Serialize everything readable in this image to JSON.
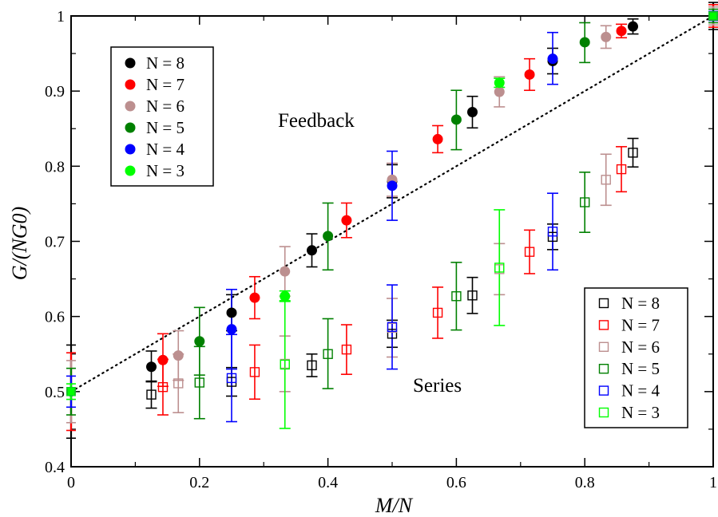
{
  "chart_data": {
    "type": "scatter",
    "xlabel": "M/N",
    "ylabel": "G/(NG0)",
    "xlim": [
      0,
      1
    ],
    "ylim": [
      0.4,
      1.0
    ],
    "x_ticks": [
      "0",
      "0.2",
      "0.4",
      "0.6",
      "0.8",
      "1"
    ],
    "y_ticks": [
      "0.4",
      "0.5",
      "0.6",
      "0.7",
      "0.8",
      "0.9",
      "1"
    ],
    "grid": false,
    "reference_line": {
      "style": "dotted",
      "x": [
        0,
        1
      ],
      "y": [
        0.5,
        1.0
      ]
    },
    "annotations": [
      "Feedback",
      "Series"
    ],
    "legends": [
      {
        "placement": "upper-left",
        "marker": "filled-circle",
        "entries": [
          "N = 8",
          "N = 7",
          "N = 6",
          "N = 5",
          "N = 4",
          "N = 3"
        ]
      },
      {
        "placement": "lower-right",
        "marker": "open-square",
        "entries": [
          "N = 8",
          "N = 7",
          "N = 6",
          "N = 5",
          "N = 4",
          "N = 3"
        ]
      }
    ],
    "groups": [
      {
        "label": "Feedback",
        "marker": "filled-circle",
        "series": [
          {
            "name": "N = 8",
            "color": "#000000",
            "points": [
              {
                "x": 0.125,
                "y": 0.533,
                "lo": 0.513,
                "hi": 0.554
              },
              {
                "x": 0.25,
                "y": 0.605,
                "lo": 0.581,
                "hi": 0.629
              },
              {
                "x": 0.375,
                "y": 0.688,
                "lo": 0.666,
                "hi": 0.71
              },
              {
                "x": 0.5,
                "y": 0.78,
                "lo": 0.758,
                "hi": 0.802
              },
              {
                "x": 0.625,
                "y": 0.872,
                "lo": 0.851,
                "hi": 0.893
              },
              {
                "x": 0.75,
                "y": 0.94,
                "lo": 0.923,
                "hi": 0.957
              },
              {
                "x": 0.875,
                "y": 0.986,
                "lo": 0.976,
                "hi": 0.996
              }
            ]
          },
          {
            "name": "N = 7",
            "color": "#ff0000",
            "points": [
              {
                "x": 0.143,
                "y": 0.542,
                "lo": 0.507,
                "hi": 0.577
              },
              {
                "x": 0.286,
                "y": 0.625,
                "lo": 0.597,
                "hi": 0.653
              },
              {
                "x": 0.429,
                "y": 0.728,
                "lo": 0.705,
                "hi": 0.751
              },
              {
                "x": 0.571,
                "y": 0.836,
                "lo": 0.818,
                "hi": 0.854
              },
              {
                "x": 0.714,
                "y": 0.922,
                "lo": 0.901,
                "hi": 0.943
              },
              {
                "x": 0.857,
                "y": 0.98,
                "lo": 0.971,
                "hi": 0.989
              }
            ]
          },
          {
            "name": "N = 6",
            "color": "#bc8f8f",
            "points": [
              {
                "x": 0.167,
                "y": 0.548,
                "lo": 0.515,
                "hi": 0.581
              },
              {
                "x": 0.333,
                "y": 0.66,
                "lo": 0.627,
                "hi": 0.693
              },
              {
                "x": 0.5,
                "y": 0.782,
                "lo": 0.76,
                "hi": 0.804
              },
              {
                "x": 0.667,
                "y": 0.899,
                "lo": 0.879,
                "hi": 0.919
              },
              {
                "x": 0.833,
                "y": 0.972,
                "lo": 0.957,
                "hi": 0.987
              }
            ]
          },
          {
            "name": "N = 5",
            "color": "#008000",
            "points": [
              {
                "x": 0.2,
                "y": 0.567,
                "lo": 0.522,
                "hi": 0.612
              },
              {
                "x": 0.4,
                "y": 0.707,
                "lo": 0.662,
                "hi": 0.751
              },
              {
                "x": 0.6,
                "y": 0.862,
                "lo": 0.822,
                "hi": 0.901
              },
              {
                "x": 0.8,
                "y": 0.965,
                "lo": 0.938,
                "hi": 0.991
              }
            ]
          },
          {
            "name": "N = 4",
            "color": "#0000ff",
            "points": [
              {
                "x": 0.25,
                "y": 0.583,
                "lo": 0.53,
                "hi": 0.636
              },
              {
                "x": 0.5,
                "y": 0.774,
                "lo": 0.728,
                "hi": 0.82
              },
              {
                "x": 0.75,
                "y": 0.943,
                "lo": 0.909,
                "hi": 0.978
              }
            ]
          },
          {
            "name": "N = 3",
            "color": "#00ff00",
            "points": [
              {
                "x": 0.333,
                "y": 0.627,
                "lo": 0.62,
                "hi": 0.634
              },
              {
                "x": 0.667,
                "y": 0.911,
                "lo": 0.905,
                "hi": 0.917
              }
            ]
          }
        ]
      },
      {
        "label": "Series",
        "marker": "open-square",
        "series": [
          {
            "name": "N = 8",
            "color": "#000000",
            "points": [
              {
                "x": 0.125,
                "y": 0.496,
                "lo": 0.478,
                "hi": 0.514
              },
              {
                "x": 0.25,
                "y": 0.513,
                "lo": 0.494,
                "hi": 0.532
              },
              {
                "x": 0.375,
                "y": 0.535,
                "lo": 0.52,
                "hi": 0.55
              },
              {
                "x": 0.5,
                "y": 0.577,
                "lo": 0.559,
                "hi": 0.595
              },
              {
                "x": 0.625,
                "y": 0.628,
                "lo": 0.604,
                "hi": 0.652
              },
              {
                "x": 0.75,
                "y": 0.706,
                "lo": 0.689,
                "hi": 0.723
              },
              {
                "x": 0.875,
                "y": 0.818,
                "lo": 0.799,
                "hi": 0.837
              }
            ]
          },
          {
            "name": "N = 7",
            "color": "#ff0000",
            "points": [
              {
                "x": 0.143,
                "y": 0.506,
                "lo": 0.469,
                "hi": 0.543
              },
              {
                "x": 0.286,
                "y": 0.526,
                "lo": 0.49,
                "hi": 0.562
              },
              {
                "x": 0.429,
                "y": 0.556,
                "lo": 0.523,
                "hi": 0.589
              },
              {
                "x": 0.571,
                "y": 0.605,
                "lo": 0.571,
                "hi": 0.639
              },
              {
                "x": 0.714,
                "y": 0.686,
                "lo": 0.657,
                "hi": 0.715
              },
              {
                "x": 0.857,
                "y": 0.796,
                "lo": 0.766,
                "hi": 0.826
              }
            ]
          },
          {
            "name": "N = 6",
            "color": "#bc8f8f",
            "points": [
              {
                "x": 0.167,
                "y": 0.511,
                "lo": 0.472,
                "hi": 0.55
              },
              {
                "x": 0.333,
                "y": 0.537,
                "lo": 0.5,
                "hi": 0.574
              },
              {
                "x": 0.5,
                "y": 0.585,
                "lo": 0.546,
                "hi": 0.624
              },
              {
                "x": 0.667,
                "y": 0.663,
                "lo": 0.629,
                "hi": 0.697
              },
              {
                "x": 0.833,
                "y": 0.782,
                "lo": 0.748,
                "hi": 0.816
              }
            ]
          },
          {
            "name": "N = 5",
            "color": "#008000",
            "points": [
              {
                "x": 0.2,
                "y": 0.512,
                "lo": 0.464,
                "hi": 0.56
              },
              {
                "x": 0.4,
                "y": 0.55,
                "lo": 0.504,
                "hi": 0.597
              },
              {
                "x": 0.6,
                "y": 0.627,
                "lo": 0.582,
                "hi": 0.672
              },
              {
                "x": 0.8,
                "y": 0.752,
                "lo": 0.712,
                "hi": 0.792
              }
            ]
          },
          {
            "name": "N = 4",
            "color": "#0000ff",
            "points": [
              {
                "x": 0.25,
                "y": 0.518,
                "lo": 0.46,
                "hi": 0.576
              },
              {
                "x": 0.5,
                "y": 0.586,
                "lo": 0.53,
                "hi": 0.642
              },
              {
                "x": 0.75,
                "y": 0.713,
                "lo": 0.662,
                "hi": 0.764
              }
            ]
          },
          {
            "name": "N = 3",
            "color": "#00ff00",
            "points": [
              {
                "x": 0.333,
                "y": 0.536,
                "lo": 0.451,
                "hi": 0.621
              },
              {
                "x": 0.667,
                "y": 0.665,
                "lo": 0.588,
                "hi": 0.742
              }
            ]
          }
        ]
      }
    ],
    "endpoints": [
      {
        "x": 0,
        "y": 0.5,
        "spread": 0.062
      },
      {
        "x": 1,
        "y": 1.0,
        "spread": 0.018
      }
    ]
  }
}
